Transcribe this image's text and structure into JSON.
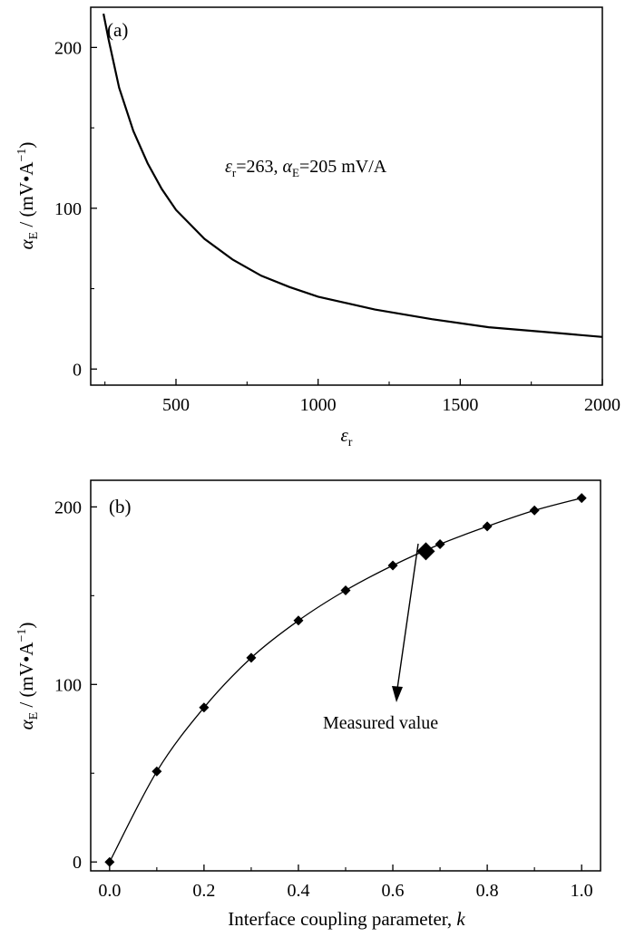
{
  "chart_data": [
    {
      "type": "line",
      "panel_label": "(a)",
      "xlabel": "ε",
      "xlabel_sub": "r",
      "ylabel_prefix": "α",
      "ylabel_sub": "E",
      "ylabel_unit": " / (mV•A",
      "ylabel_sup": "−1",
      "ylabel_close": ")",
      "xlim": [
        200,
        2000
      ],
      "ylim": [
        -10,
        225
      ],
      "x_ticks": [
        500,
        1000,
        1500,
        2000
      ],
      "y_ticks": [
        0,
        100,
        200
      ],
      "grid": false,
      "annotation": {
        "eps": "ε",
        "eps_sub": "r",
        "eps_val": "=263, ",
        "alpha": "α",
        "alpha_sub": "E",
        "alpha_val": "=205 mV/A"
      },
      "series": [
        {
          "x": [
            245,
            263,
            300,
            350,
            400,
            450,
            500,
            600,
            700,
            800,
            900,
            1000,
            1200,
            1400,
            1600,
            1800,
            2000
          ],
          "y": [
            221,
            205,
            175,
            148,
            128,
            112,
            99,
            81,
            68,
            58,
            51,
            45,
            37,
            31,
            26,
            23,
            20
          ]
        }
      ]
    },
    {
      "type": "scatter",
      "panel_label": "(b)",
      "xlabel": "Interface coupling parameter, ",
      "xlabel_italic": "k",
      "ylabel_prefix": "α",
      "ylabel_sub": "E",
      "ylabel_unit": " / (mV•A",
      "ylabel_sup": "−1",
      "ylabel_close": ")",
      "xlim": [
        -0.04,
        1.04
      ],
      "ylim": [
        -5,
        215
      ],
      "x_ticks": [
        "0.0",
        "0.2",
        "0.4",
        "0.6",
        "0.8",
        "1.0"
      ],
      "y_ticks": [
        0,
        100,
        200
      ],
      "grid": false,
      "series": [
        {
          "x": [
            0.0,
            0.1,
            0.2,
            0.3,
            0.4,
            0.5,
            0.6,
            0.7,
            0.8,
            0.9,
            1.0
          ],
          "y": [
            0,
            51,
            87,
            115,
            136,
            153,
            167,
            179,
            189,
            198,
            205
          ]
        }
      ],
      "measured_point": {
        "x": 0.67,
        "y": 175,
        "label": "Measured value"
      }
    }
  ]
}
